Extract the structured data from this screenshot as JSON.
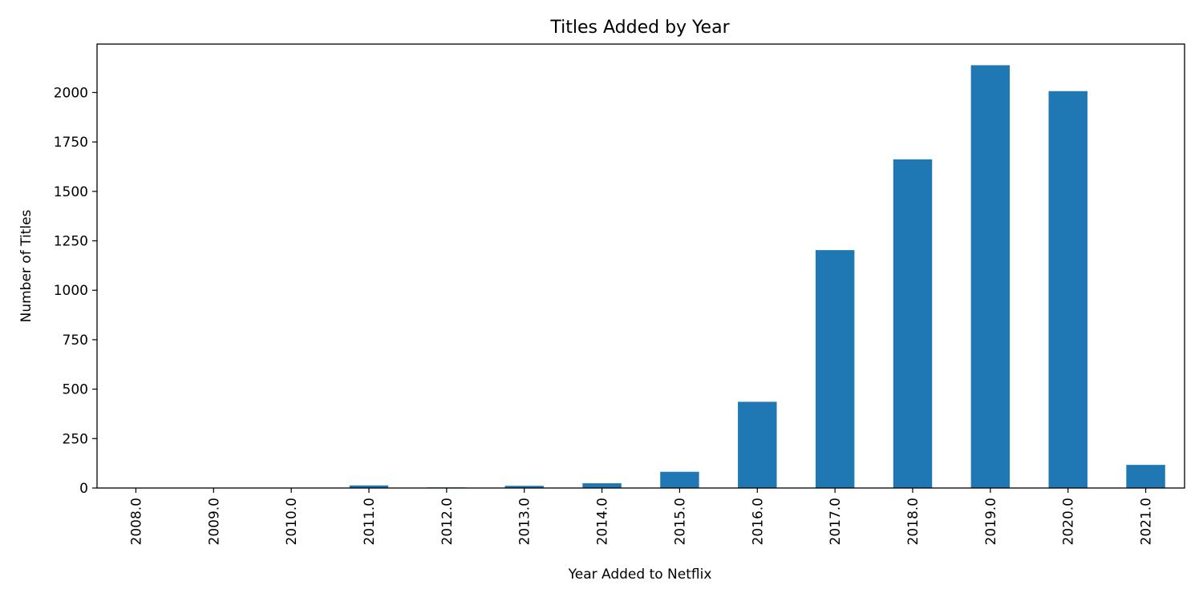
{
  "chart_data": {
    "type": "bar",
    "title": "Titles Added by Year",
    "xlabel": "Year Added to Netflix",
    "ylabel": "Number of Titles",
    "categories": [
      "2008.0",
      "2009.0",
      "2010.0",
      "2011.0",
      "2012.0",
      "2013.0",
      "2014.0",
      "2015.0",
      "2016.0",
      "2017.0",
      "2018.0",
      "2019.0",
      "2020.0",
      "2021.0"
    ],
    "values": [
      2,
      2,
      1,
      13,
      3,
      11,
      24,
      82,
      436,
      1203,
      1662,
      2138,
      2007,
      117
    ],
    "ylim": [
      0,
      2245
    ],
    "yticks": [
      0,
      250,
      500,
      750,
      1000,
      1250,
      1500,
      1750,
      2000
    ],
    "bar_color": "#1f77b4",
    "grid": false,
    "legend": false
  }
}
